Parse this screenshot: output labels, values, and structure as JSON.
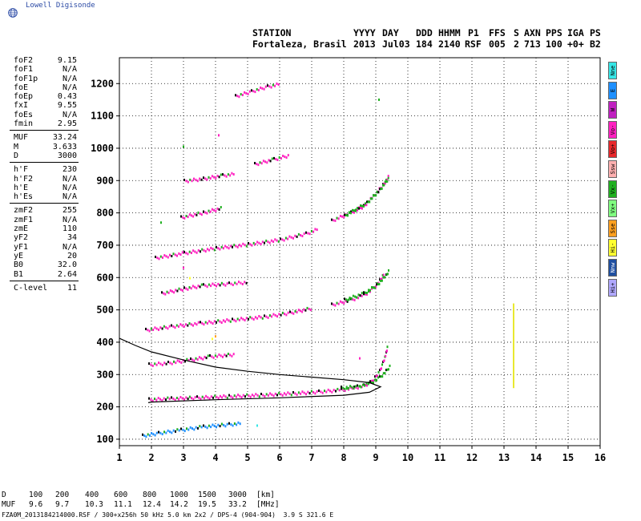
{
  "brand": {
    "name": "Lowell Digisonde"
  },
  "header": {
    "row1": [
      "STATION",
      "YYYY",
      "DAY",
      "DDD",
      "HHMM",
      "P1",
      "FFS",
      "S",
      "AXN",
      "PPS",
      "IGA",
      "PS"
    ],
    "row2": [
      "Fortaleza, Brasil",
      "2013",
      "Jul03",
      "184",
      "2140",
      "RSF",
      "005",
      "2",
      "713",
      "100",
      "+0+",
      "B2"
    ]
  },
  "params": [
    {
      "label": "foF2",
      "value": "9.15"
    },
    {
      "label": "foF1",
      "value": "N/A"
    },
    {
      "label": "foF1p",
      "value": "N/A"
    },
    {
      "label": "foE",
      "value": "N/A"
    },
    {
      "label": "foEp",
      "value": "0.43"
    },
    {
      "label": "fxI",
      "value": "9.55"
    },
    {
      "label": "foEs",
      "value": "N/A"
    },
    {
      "label": "fmin",
      "value": "2.95"
    },
    {
      "sep": true
    },
    {
      "label": "MUF",
      "value": "33.24"
    },
    {
      "label": "M",
      "value": "3.633"
    },
    {
      "label": "D",
      "value": "3000"
    },
    {
      "sep": true
    },
    {
      "label": "h'F",
      "value": "230"
    },
    {
      "label": "h'F2",
      "value": "N/A"
    },
    {
      "label": "h'E",
      "value": "N/A"
    },
    {
      "label": "h'Es",
      "value": "N/A"
    },
    {
      "sep": true
    },
    {
      "label": "zmF2",
      "value": "255"
    },
    {
      "label": "zmF1",
      "value": "N/A"
    },
    {
      "label": "zmE",
      "value": "110"
    },
    {
      "label": "yF2",
      "value": "34"
    },
    {
      "label": "yF1",
      "value": "N/A"
    },
    {
      "label": "yE",
      "value": "20"
    },
    {
      "label": "B0",
      "value": "32.0"
    },
    {
      "label": "B1",
      "value": "2.64"
    },
    {
      "sep": true
    },
    {
      "label": "C-level",
      "value": "11"
    }
  ],
  "legend": [
    {
      "label": "Nne",
      "color": "#36e6e6"
    },
    {
      "label": "E",
      "color": "#1e90ff"
    },
    {
      "label": "W",
      "color": "#c020c0"
    },
    {
      "label": "Vo-",
      "color": "#ff20c0"
    },
    {
      "label": "Vo+",
      "color": "#e8282c"
    },
    {
      "label": "Ssw",
      "color": "#ffb0b0"
    },
    {
      "label": "Vx-",
      "color": "#20b020"
    },
    {
      "label": "Vx+",
      "color": "#80ff80"
    },
    {
      "label": "Sse",
      "color": "#ffa020"
    },
    {
      "label": "Hi-",
      "color": "#ffff30"
    },
    {
      "label": "Nnw",
      "color": "#1f4fa0"
    },
    {
      "label": "Hi+",
      "color": "#b0a8ff"
    }
  ],
  "chart_data": {
    "type": "scatter",
    "xlim": [
      1,
      16
    ],
    "ylim": [
      80,
      1280
    ],
    "xticks": [
      "1",
      "2",
      "3",
      "4",
      "5",
      "6",
      "7",
      "8",
      "9",
      "10",
      "11",
      "12",
      "13",
      "14",
      "15",
      "16"
    ],
    "yticks": [
      "100",
      "200",
      "300",
      "400",
      "500",
      "600",
      "700",
      "800",
      "900",
      "1000",
      "1100",
      "1200"
    ],
    "grid": true,
    "traces": [
      {
        "name": "F-trace O (1 hop)",
        "color": "#ff20c0",
        "points": [
          [
            1.9,
            222
          ],
          [
            2.6,
            225
          ],
          [
            3.4,
            228
          ],
          [
            4.4,
            232
          ],
          [
            5.4,
            236
          ],
          [
            6.4,
            241
          ],
          [
            7.2,
            246
          ],
          [
            7.9,
            252
          ],
          [
            8.3,
            258
          ],
          [
            8.6,
            265
          ],
          [
            8.8,
            275
          ],
          [
            8.95,
            290
          ],
          [
            9.1,
            310
          ],
          [
            9.2,
            335
          ],
          [
            9.3,
            365
          ],
          [
            9.35,
            390
          ]
        ]
      },
      {
        "name": "F-trace X (1 hop)",
        "color": "#20b020",
        "points": [
          [
            7.9,
            258
          ],
          [
            8.4,
            262
          ],
          [
            8.8,
            272
          ],
          [
            9.1,
            290
          ],
          [
            9.3,
            310
          ],
          [
            9.45,
            330
          ]
        ]
      },
      {
        "name": "F 2-hop",
        "color": "#ff20c0",
        "points": [
          [
            1.8,
            437
          ],
          [
            2.6,
            448
          ],
          [
            3.5,
            458
          ],
          [
            4.5,
            468
          ],
          [
            5.5,
            478
          ],
          [
            6.3,
            490
          ],
          [
            7.0,
            505
          ]
        ]
      },
      {
        "name": "F 2-hop high",
        "color": "#ff20c0",
        "points": [
          [
            7.6,
            515
          ],
          [
            8.2,
            530
          ],
          [
            8.6,
            545
          ],
          [
            8.9,
            565
          ],
          [
            9.1,
            590
          ],
          [
            9.25,
            615
          ]
        ]
      },
      {
        "name": "F 2-hop X",
        "color": "#20b020",
        "points": [
          [
            8.0,
            530
          ],
          [
            8.6,
            550
          ],
          [
            9.0,
            575
          ],
          [
            9.3,
            605
          ],
          [
            9.4,
            625
          ]
        ]
      },
      {
        "name": "F 3-hop",
        "color": "#ff20c0",
        "points": [
          [
            2.1,
            660
          ],
          [
            3.0,
            675
          ],
          [
            4.0,
            690
          ],
          [
            5.0,
            702
          ],
          [
            6.0,
            716
          ],
          [
            6.8,
            735
          ],
          [
            7.2,
            750
          ]
        ]
      },
      {
        "name": "F 3-hop high",
        "color": "#ff20c0",
        "points": [
          [
            7.6,
            775
          ],
          [
            8.2,
            800
          ],
          [
            8.6,
            820
          ],
          [
            8.9,
            850
          ],
          [
            9.2,
            885
          ],
          [
            9.4,
            915
          ]
        ]
      },
      {
        "name": "F 3-hop X",
        "color": "#20b020",
        "points": [
          [
            8.0,
            790
          ],
          [
            8.7,
            830
          ],
          [
            9.1,
            870
          ],
          [
            9.4,
            910
          ]
        ]
      },
      {
        "name": "Es 1-hop",
        "color": "#1e90ff",
        "points": [
          [
            1.7,
            110
          ],
          [
            2.2,
            118
          ],
          [
            2.9,
            128
          ],
          [
            3.6,
            138
          ],
          [
            4.4,
            145
          ],
          [
            4.8,
            148
          ]
        ]
      },
      {
        "name": "Es 2-hop",
        "color": "#ff20c0",
        "points": [
          [
            1.9,
            330
          ],
          [
            2.5,
            335
          ],
          [
            3.2,
            345
          ],
          [
            3.8,
            355
          ],
          [
            4.6,
            362
          ]
        ]
      },
      {
        "name": "Es 3-hop",
        "color": "#ff20c0",
        "points": [
          [
            2.3,
            550
          ],
          [
            3.0,
            565
          ],
          [
            3.6,
            575
          ],
          [
            4.4,
            580
          ],
          [
            5.0,
            585
          ]
        ]
      },
      {
        "name": "Es 4-hop",
        "color": "#ff20c0",
        "points": [
          [
            2.9,
            785
          ],
          [
            3.6,
            800
          ],
          [
            4.2,
            815
          ]
        ]
      },
      {
        "name": "Es 5-hop",
        "color": "#ff20c0",
        "points": [
          [
            3.0,
            898
          ],
          [
            3.6,
            905
          ],
          [
            4.2,
            915
          ],
          [
            4.6,
            920
          ]
        ]
      },
      {
        "name": "Es 6-hop",
        "color": "#ff20c0",
        "points": [
          [
            5.2,
            950
          ],
          [
            5.8,
            965
          ],
          [
            6.3,
            978
          ]
        ]
      },
      {
        "name": "Es 7-hop",
        "color": "#ff20c0",
        "points": [
          [
            4.6,
            1160
          ],
          [
            5.1,
            1175
          ],
          [
            5.6,
            1190
          ],
          [
            6.0,
            1198
          ]
        ]
      }
    ],
    "extra_points": [
      [
        3.0,
        1005,
        "#20b020"
      ],
      [
        4.1,
        1040,
        "#ff20c0"
      ],
      [
        9.1,
        1150,
        "#20b020"
      ],
      [
        2.3,
        770,
        "#20b020"
      ],
      [
        3.0,
        630,
        "#ff20c0"
      ],
      [
        3.2,
        598,
        "#ffff30"
      ],
      [
        4.0,
        418,
        "#ffa020"
      ],
      [
        3.9,
        410,
        "#ffff30"
      ],
      [
        5.3,
        142,
        "#36e6e6"
      ],
      [
        8.5,
        350,
        "#ff20c0"
      ]
    ],
    "profile": {
      "color": "#000000",
      "points": [
        [
          1.0,
          412
        ],
        [
          1.5,
          390
        ],
        [
          2.0,
          370
        ],
        [
          3.0,
          345
        ],
        [
          4.0,
          323
        ],
        [
          5.0,
          310
        ],
        [
          6.0,
          300
        ],
        [
          7.0,
          292
        ],
        [
          8.0,
          284
        ],
        [
          8.8,
          275
        ],
        [
          9.15,
          262
        ],
        [
          8.8,
          245
        ],
        [
          8.0,
          236
        ],
        [
          6.0,
          228
        ],
        [
          4.0,
          222
        ],
        [
          2.0,
          215
        ],
        [
          1.9,
          213
        ]
      ]
    },
    "noise_line": {
      "x": 13.3,
      "y1": 258,
      "y2": 520,
      "color": "#e8e830"
    }
  },
  "muf_table": {
    "d_label": "D",
    "muf_label": "MUF",
    "d_values": [
      "100",
      "200",
      "400",
      "600",
      "800",
      "1000",
      "1500",
      "3000"
    ],
    "muf_values": [
      "9.6",
      "9.7",
      "10.3",
      "11.1",
      "12.4",
      "14.2",
      "19.5",
      "33.2"
    ],
    "d_unit": "[km]",
    "muf_unit": "[MHz]"
  },
  "footer": "FZA0M_2013184214000.RSF / 300+x256h 50 kHz 5.0 km 2x2 / DPS-4 (904-904)  3.9 S 321.6 E"
}
